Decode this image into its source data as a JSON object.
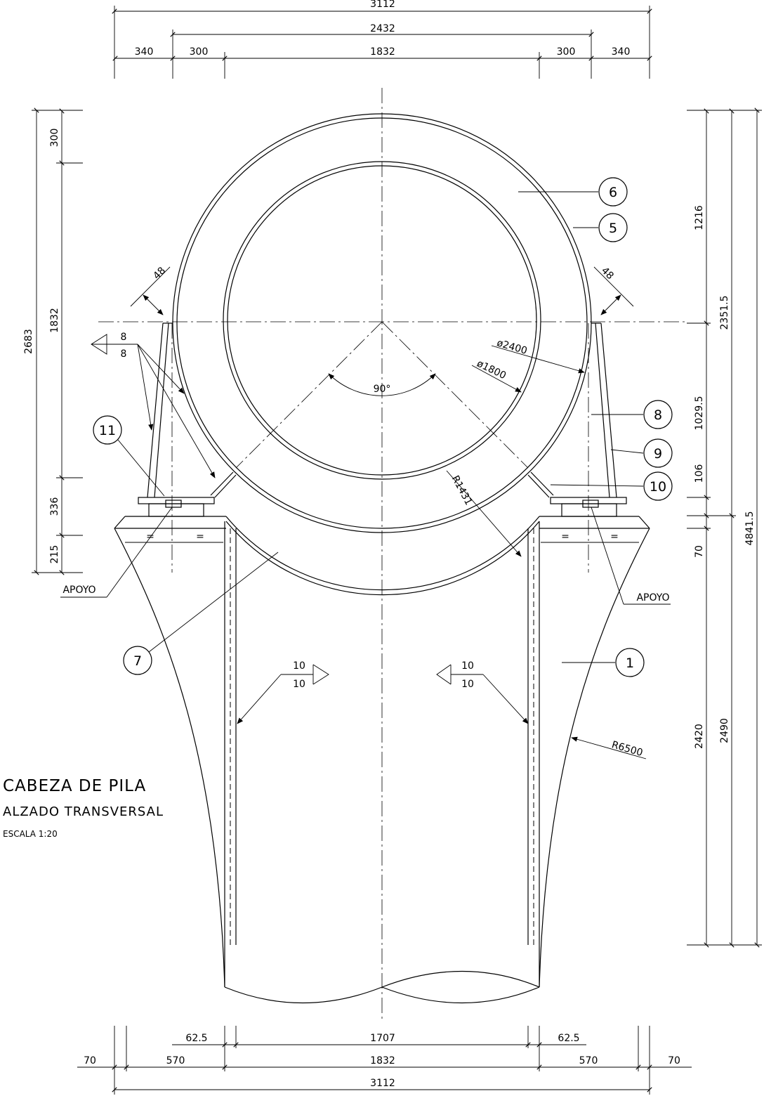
{
  "dimensions": {
    "top_overall": "3112",
    "top_second": "2432",
    "top_left_340": "340",
    "top_left_300": "300",
    "top_center": "1832",
    "top_right_300": "300",
    "top_right_340": "340",
    "left_2683": "2683",
    "left_300": "300",
    "left_1832": "1832",
    "left_336": "336",
    "left_215": "215",
    "right_1216": "1216",
    "right_2351_5": "2351.5",
    "right_1029_5": "1029.5",
    "right_106": "106",
    "right_4841_5": "4841.5",
    "right_70": "70",
    "right_2420": "2420",
    "right_2490": "2490",
    "bottom_62_5_left": "62.5",
    "bottom_1707": "1707",
    "bottom_62_5_right": "62.5",
    "bottom_70_left": "70",
    "bottom_570_left": "570",
    "bottom_1832": "1832",
    "bottom_570_right": "570",
    "bottom_70_right": "70",
    "bottom_overall": "3112"
  },
  "annotations": {
    "chamfer_left": "48",
    "chamfer_right": "48",
    "weld_left_top": "8",
    "weld_left_bottom": "8",
    "dia_outer": "ø2400",
    "dia_inner": "ø1800",
    "angle": "90°",
    "radius_inner": "R1431",
    "radius_outer": "R6500",
    "weld_mid_left_top": "10",
    "weld_mid_left_bottom": "10",
    "weld_mid_right_top": "10",
    "weld_mid_right_bottom": "10",
    "equal_1": "=",
    "equal_2": "=",
    "equal_3": "=",
    "equal_4": "=",
    "support_left": "APOYO",
    "support_right": "APOYO"
  },
  "marks": {
    "m1": "1",
    "m5": "5",
    "m6": "6",
    "m7": "7",
    "m8": "8",
    "m9": "9",
    "m10": "10",
    "m11": "11"
  },
  "title": {
    "line1": "CABEZA DE PILA",
    "line2": "ALZADO TRANSVERSAL",
    "line3": "ESCALA 1:20"
  }
}
